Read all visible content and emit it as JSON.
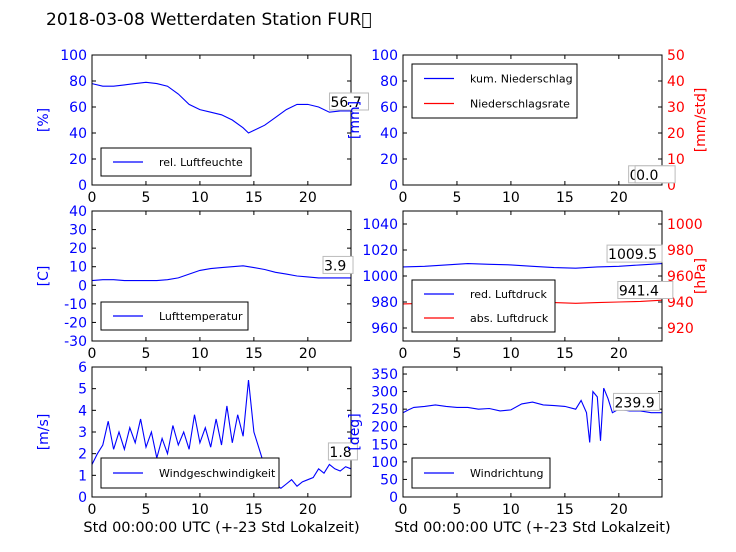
{
  "title": "2018-03-08 Wetterdaten Station FUR\u0000",
  "colors": {
    "primary": "#0000ff",
    "secondary": "#ff0000",
    "axis": "#000000"
  },
  "chart_data": [
    {
      "id": "humidity",
      "type": "line",
      "xlim": [
        0,
        24
      ],
      "xticks": [
        0,
        5,
        10,
        15,
        20
      ],
      "ylabel": "[%]",
      "ylim": [
        0,
        100
      ],
      "yticks": [
        0,
        20,
        40,
        60,
        80,
        100
      ],
      "legend": {
        "position": "lower-left",
        "entries": [
          {
            "label": "rel. Luftfeuchte",
            "color": "#0000ff"
          }
        ]
      },
      "series": [
        {
          "name": "rel. Luftfeuchte",
          "color": "#0000ff",
          "axis": "left",
          "x": [
            0,
            1,
            2,
            3,
            4,
            5,
            6,
            7,
            8,
            9,
            10,
            11,
            12,
            13,
            14,
            14.5,
            15,
            16,
            17,
            18,
            19,
            20,
            21,
            22,
            23,
            24
          ],
          "y": [
            78,
            76,
            76,
            77,
            78,
            79,
            78,
            76,
            70,
            62,
            58,
            56,
            54,
            50,
            44,
            40,
            42,
            46,
            52,
            58,
            62,
            62,
            60,
            56,
            57,
            57
          ]
        }
      ],
      "annotations": [
        {
          "text": "56.7",
          "x": 22.1,
          "y": 60
        }
      ]
    },
    {
      "id": "precipitation",
      "type": "line",
      "xlim": [
        0,
        24
      ],
      "xticks": [
        0,
        5,
        10,
        15,
        20
      ],
      "ylabel": "[mm]",
      "ylim": [
        0,
        100
      ],
      "yticks": [
        0,
        20,
        40,
        60,
        80,
        100
      ],
      "y2label": "[mm/std]",
      "y2lim": [
        0,
        50
      ],
      "y2ticks": [
        0,
        10,
        20,
        30,
        40,
        50
      ],
      "legend": {
        "position": "upper-left",
        "entries": [
          {
            "label": "kum. Niederschlag",
            "color": "#0000ff"
          },
          {
            "label": "Niederschlagsrate",
            "color": "#ff0000"
          }
        ]
      },
      "series": [
        {
          "name": "kum. Niederschlag",
          "color": "#0000ff",
          "axis": "left",
          "x": [
            0,
            24
          ],
          "y": [
            0,
            0
          ]
        },
        {
          "name": "Niederschlagsrate",
          "color": "#ff0000",
          "axis": "right",
          "x": [
            0,
            24
          ],
          "y": [
            0,
            0
          ]
        }
      ],
      "annotations": [
        {
          "text": "0.0",
          "x": 21.0,
          "y": 4
        },
        {
          "text": "0.0",
          "x": 21.6,
          "y": 4
        }
      ]
    },
    {
      "id": "temperature",
      "type": "line",
      "xlim": [
        0,
        24
      ],
      "xticks": [
        0,
        5,
        10,
        15,
        20
      ],
      "ylabel": "[C]",
      "ylim": [
        -30,
        40
      ],
      "yticks": [
        -30,
        -20,
        -10,
        0,
        10,
        20,
        30,
        40
      ],
      "legend": {
        "position": "lower-left",
        "entries": [
          {
            "label": "Lufttemperatur",
            "color": "#0000ff"
          }
        ]
      },
      "series": [
        {
          "name": "Lufttemperatur",
          "color": "#0000ff",
          "axis": "left",
          "x": [
            0,
            1,
            2,
            3,
            4,
            5,
            6,
            7,
            8,
            9,
            10,
            11,
            12,
            13,
            14,
            15,
            16,
            17,
            18,
            19,
            20,
            21,
            22,
            23,
            24
          ],
          "y": [
            2.5,
            3,
            3,
            2.5,
            2.5,
            2.5,
            2.5,
            3,
            4,
            6,
            8,
            9,
            9.5,
            10,
            10.5,
            9.5,
            8.5,
            7,
            6,
            5,
            4.5,
            4,
            4,
            4,
            4
          ]
        }
      ],
      "annotations": [
        {
          "text": "3.9",
          "x": 21.5,
          "y": 8
        }
      ]
    },
    {
      "id": "pressure",
      "type": "line",
      "xlim": [
        0,
        24
      ],
      "xticks": [
        0,
        5,
        10,
        15,
        20
      ],
      "ylim": [
        950,
        1050
      ],
      "yticks": [
        960,
        980,
        1000,
        1020,
        1040
      ],
      "y2label": "[hPa]",
      "y2lim": [
        910,
        1010
      ],
      "y2ticks": [
        920,
        940,
        960,
        980,
        1000
      ],
      "legend": {
        "position": "lower-left",
        "entries": [
          {
            "label": "red. Luftdruck",
            "color": "#0000ff"
          },
          {
            "label": "abs. Luftdruck",
            "color": "#ff0000"
          }
        ]
      },
      "series": [
        {
          "name": "red. Luftdruck",
          "color": "#0000ff",
          "axis": "left",
          "x": [
            0,
            2,
            4,
            6,
            8,
            10,
            12,
            14,
            16,
            18,
            20,
            22,
            24
          ],
          "y": [
            1007,
            1007.5,
            1008.5,
            1009.5,
            1009,
            1008.5,
            1007.5,
            1006.5,
            1006,
            1007,
            1007.5,
            1008.5,
            1009.5
          ]
        },
        {
          "name": "abs. Luftdruck",
          "color": "#ff0000",
          "axis": "right",
          "x": [
            0,
            2,
            4,
            6,
            8,
            10,
            12,
            14,
            16,
            18,
            20,
            22,
            24
          ],
          "y": [
            938.5,
            939,
            940,
            941,
            941,
            941,
            940,
            939.5,
            939,
            939.5,
            940,
            940.5,
            941.4
          ]
        }
      ],
      "annotations": [
        {
          "text": "1009.5",
          "x": 19.0,
          "y": 1013
        },
        {
          "text": "941.4",
          "x": 20.0,
          "y": 985
        }
      ]
    },
    {
      "id": "windspeed",
      "type": "line",
      "xlim": [
        0,
        24
      ],
      "xticks": [
        0,
        5,
        10,
        15,
        20
      ],
      "xlabel": "Std 00:00:00 UTC (+-23 Std Lokalzeit)",
      "ylabel": "[m/s]",
      "ylim": [
        0,
        6
      ],
      "yticks": [
        0,
        1,
        2,
        3,
        4,
        5,
        6
      ],
      "legend": {
        "position": "lower-center",
        "entries": [
          {
            "label": "Windgeschwindigkeit",
            "color": "#0000ff"
          }
        ]
      },
      "series": [
        {
          "name": "Windgeschwindigkeit",
          "color": "#0000ff",
          "axis": "left",
          "x": [
            0,
            0.5,
            1,
            1.5,
            2,
            2.5,
            3,
            3.5,
            4,
            4.5,
            5,
            5.5,
            6,
            6.5,
            7,
            7.5,
            8,
            8.5,
            9,
            9.5,
            10,
            10.5,
            11,
            11.5,
            12,
            12.5,
            13,
            13.5,
            14,
            14.5,
            15,
            15.5,
            16,
            16.5,
            17,
            17.5,
            18,
            18.5,
            19,
            19.5,
            20,
            20.5,
            21,
            21.5,
            22,
            22.5,
            23,
            23.5,
            24
          ],
          "y": [
            1.5,
            2.0,
            2.4,
            3.5,
            2.2,
            3.0,
            2.2,
            3.2,
            2.5,
            3.6,
            2.3,
            3.0,
            1.8,
            2.7,
            2.0,
            3.3,
            2.4,
            3.0,
            2.2,
            3.8,
            2.5,
            3.2,
            2.3,
            3.6,
            2.4,
            4.2,
            2.5,
            3.8,
            2.8,
            5.4,
            3.0,
            2.2,
            1.4,
            1.0,
            0.6,
            0.4,
            0.6,
            0.8,
            0.5,
            0.7,
            0.8,
            0.9,
            1.3,
            1.1,
            1.5,
            1.3,
            1.2,
            1.4,
            1.3
          ]
        }
      ],
      "annotations": [
        {
          "text": "1.8",
          "x": 22.0,
          "y": 1.85
        }
      ]
    },
    {
      "id": "winddirection",
      "type": "line",
      "xlim": [
        0,
        24
      ],
      "xticks": [
        0,
        5,
        10,
        15,
        20
      ],
      "xlabel": "Std 00:00:00 UTC (+-23 Std Lokalzeit)",
      "ylabel": "[deg]",
      "ylim": [
        0,
        370
      ],
      "yticks": [
        0,
        50,
        100,
        150,
        200,
        250,
        300,
        350
      ],
      "legend": {
        "position": "lower-left",
        "entries": [
          {
            "label": "Windrichtung",
            "color": "#0000ff"
          }
        ]
      },
      "series": [
        {
          "name": "Windrichtung",
          "color": "#0000ff",
          "axis": "left",
          "x": [
            0,
            0.5,
            1,
            2,
            3,
            4,
            5,
            6,
            7,
            8,
            9,
            10,
            11,
            12,
            13,
            14,
            15,
            16,
            16.5,
            17,
            17.3,
            17.6,
            18,
            18.3,
            18.6,
            19,
            19.4,
            20,
            21,
            22,
            23,
            24
          ],
          "y": [
            240,
            248,
            255,
            258,
            262,
            258,
            255,
            255,
            250,
            252,
            245,
            248,
            265,
            270,
            262,
            260,
            258,
            250,
            275,
            240,
            155,
            300,
            285,
            160,
            310,
            280,
            240,
            250,
            245,
            245,
            240,
            240
          ]
        }
      ],
      "annotations": [
        {
          "text": "239.9",
          "x": 19.6,
          "y": 255
        }
      ]
    }
  ]
}
